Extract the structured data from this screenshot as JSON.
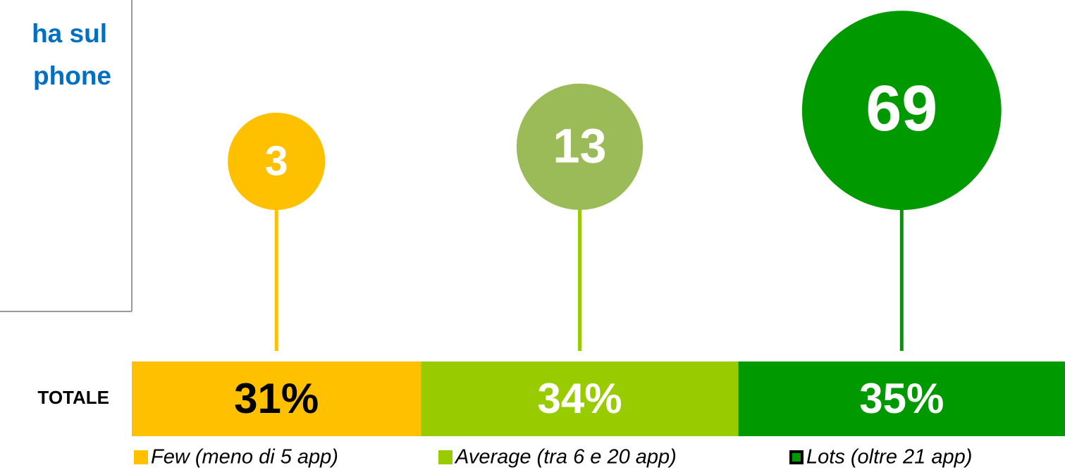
{
  "chart_data": {
    "type": "stacked-bar",
    "heading": [
      "ha sul",
      "phone"
    ],
    "categories": [
      "TOTALE"
    ],
    "xlim": [
      0,
      100
    ],
    "series": [
      {
        "name": "Few (meno di 5 app)",
        "color": "#ffc000",
        "label_color": "#000000",
        "values": [
          31
        ],
        "value_labels": [
          "31%"
        ]
      },
      {
        "name": "Average (tra 6 e 20 app)",
        "color": "#99cc00",
        "label_color": "#ffffff",
        "values": [
          34
        ],
        "value_labels": [
          "34%"
        ]
      },
      {
        "name": "Lots (oltre 21 app)",
        "color": "#009900",
        "label_color": "#ffffff",
        "values": [
          35
        ],
        "value_labels": [
          "35%"
        ]
      }
    ],
    "bubbles": {
      "values": [
        3,
        13,
        69
      ],
      "colors": [
        "#ffc000",
        "#9bbb59",
        "#009900"
      ]
    }
  }
}
